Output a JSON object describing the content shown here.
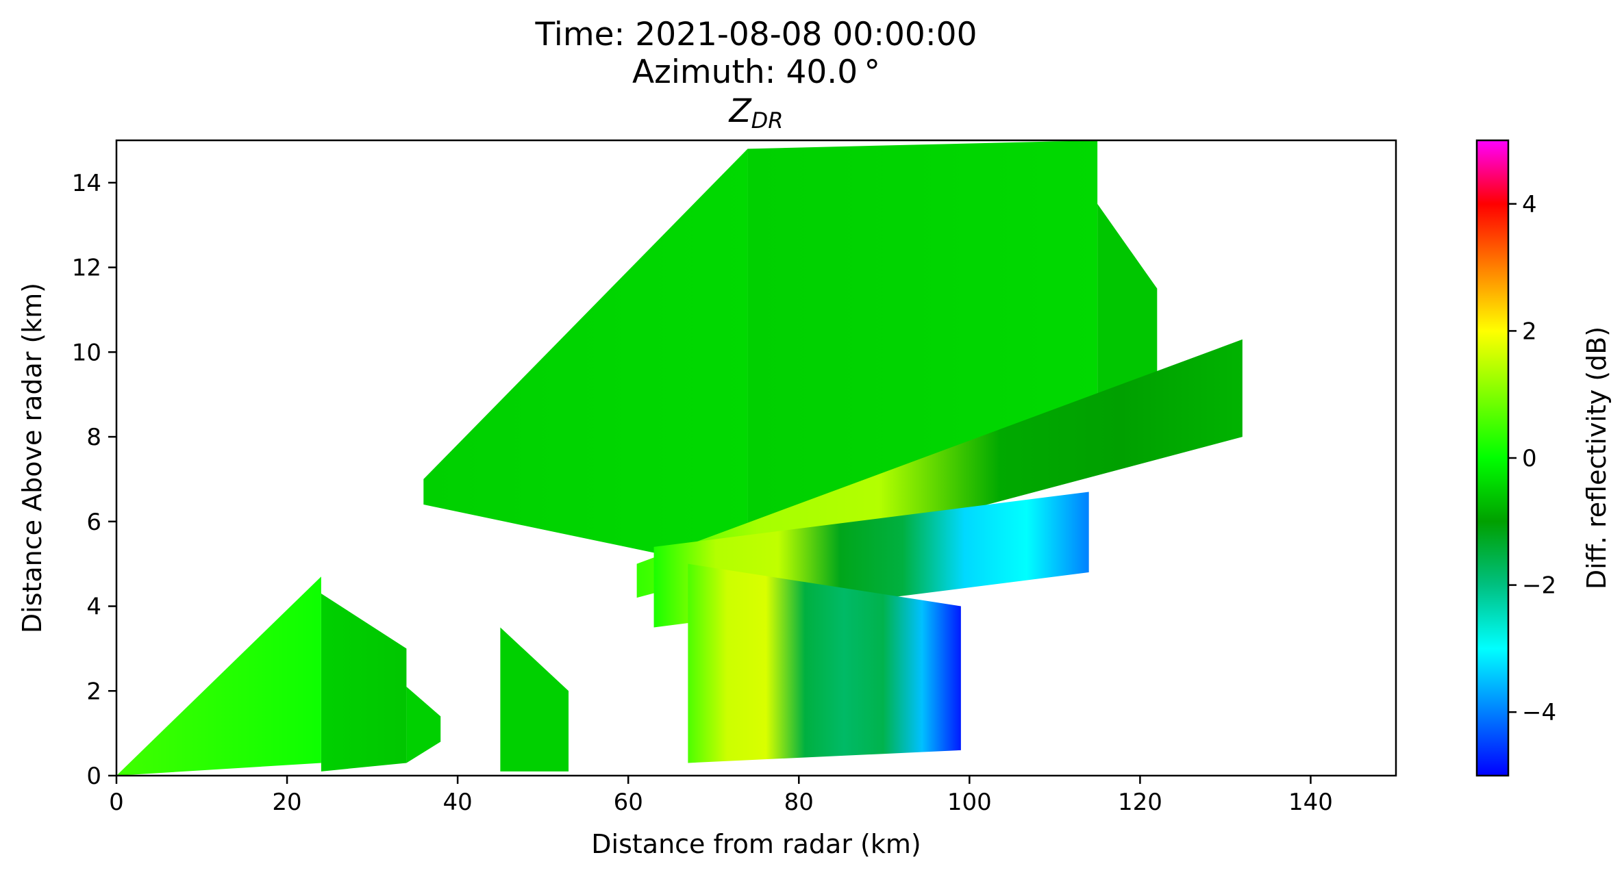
{
  "chart_data": {
    "type": "heatmap",
    "title_lines": [
      "Time: 2021-08-08 00:00:00",
      "Azimuth: 40.0 °"
    ],
    "title_var_main": "Z",
    "title_var_sub": "DR",
    "xlabel": "Distance from radar (km)",
    "ylabel": "Distance Above radar  (km)",
    "xlim": [
      0,
      150
    ],
    "ylim": [
      0,
      15
    ],
    "xticks": [
      0,
      20,
      40,
      60,
      80,
      100,
      120,
      140
    ],
    "yticks": [
      0,
      2,
      4,
      6,
      8,
      10,
      12,
      14
    ],
    "grid": false,
    "colorbar": {
      "label": "Diff. reflectivity (dB)",
      "range": [
        -5,
        5
      ],
      "ticks": [
        -4,
        -2,
        0,
        2,
        4
      ],
      "colormap": [
        "#0000ff",
        "#0080ff",
        "#00ffff",
        "#00c080",
        "#00a000",
        "#00ff00",
        "#80ff00",
        "#ffff00",
        "#ff8000",
        "#ff0000",
        "#ff00ff"
      ]
    },
    "sweeps": [
      {
        "range_km": [
          0,
          24
        ],
        "top_km": [
          0,
          4.7
        ],
        "bottom_km": [
          0,
          0.3
        ],
        "zdr_db": [
          0.5,
          0.3,
          0.1
        ]
      },
      {
        "range_km": [
          24,
          34
        ],
        "top_km": [
          4.3,
          3.0
        ],
        "bottom_km": [
          0.1,
          0.3
        ],
        "zdr_db": [
          -0.5,
          -0.6
        ]
      },
      {
        "range_km": [
          34,
          38
        ],
        "top_km": [
          2.1,
          1.4
        ],
        "bottom_km": [
          0.3,
          0.8
        ],
        "zdr_db": [
          -0.5
        ]
      },
      {
        "range_km": [
          36,
          74
        ],
        "top_km": [
          7.0,
          14.8
        ],
        "bottom_km": [
          6.4,
          4.8
        ],
        "zdr_db": [
          -0.5,
          -0.4
        ]
      },
      {
        "range_km": [
          74,
          115
        ],
        "top_km": [
          14.8,
          15.0
        ],
        "bottom_km": [
          5.5,
          8.0
        ],
        "zdr_db": [
          -0.5,
          -0.4
        ]
      },
      {
        "range_km": [
          115,
          122
        ],
        "top_km": [
          13.5,
          11.5
        ],
        "bottom_km": [
          8.5,
          9.0
        ],
        "zdr_db": [
          -0.6
        ]
      },
      {
        "range_km": [
          45,
          53
        ],
        "top_km": [
          3.5,
          2.0
        ],
        "bottom_km": [
          0.1,
          0.1
        ],
        "zdr_db": [
          -0.5
        ]
      },
      {
        "range_km": [
          61,
          132
        ],
        "top_km": [
          5.0,
          10.3
        ],
        "bottom_km": [
          4.2,
          8.0
        ],
        "zdr_db": [
          0.4,
          1.3,
          1.4,
          -0.9,
          -1.0,
          -0.8
        ]
      },
      {
        "range_km": [
          63,
          114
        ],
        "top_km": [
          5.4,
          6.7
        ],
        "bottom_km": [
          3.5,
          4.8
        ],
        "zdr_db": [
          0.2,
          1.4,
          1.5,
          -1.2,
          -1.5,
          -3.3,
          -3.0,
          -4.0
        ]
      },
      {
        "range_km": [
          67,
          99
        ],
        "top_km": [
          5.0,
          4.0
        ],
        "bottom_km": [
          0.3,
          0.6
        ],
        "zdr_db": [
          0.6,
          1.6,
          1.7,
          -1.5,
          -1.8,
          -1.6,
          -3.5,
          -4.8
        ]
      }
    ]
  }
}
